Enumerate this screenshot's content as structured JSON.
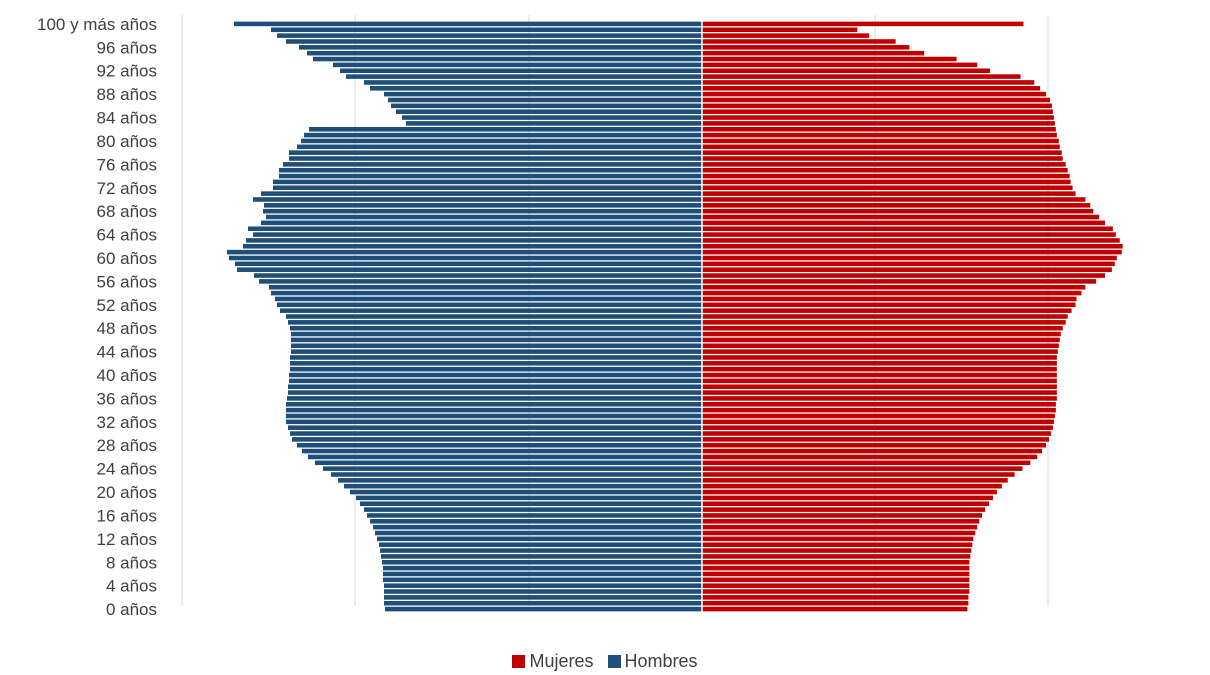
{
  "chart_data": {
    "type": "bar",
    "orientation": "horizontal-pyramid",
    "title": "",
    "xlabel": "",
    "ylabel": "",
    "grid": true,
    "legend_placement": "bottom",
    "category_tick_labels": [
      "0 años",
      "4 años",
      "8 años",
      "12 años",
      "16 años",
      "20 años",
      "24 años",
      "28 años",
      "32 años",
      "36 años",
      "40 años",
      "44 años",
      "48 años",
      "52 años",
      "56 años",
      "60 años",
      "64 años",
      "68 años",
      "72 años",
      "76 años",
      "80 años",
      "84 años",
      "88 años",
      "92 años",
      "96 años",
      "100 y más años"
    ],
    "categories": [
      "0 años",
      "1 años",
      "2 años",
      "3 años",
      "4 años",
      "5 años",
      "6 años",
      "7 años",
      "8 años",
      "9 años",
      "10 años",
      "11 años",
      "12 años",
      "13 años",
      "14 años",
      "15 años",
      "16 años",
      "17 años",
      "18 años",
      "19 años",
      "20 años",
      "21 años",
      "22 años",
      "23 años",
      "24 años",
      "25 años",
      "26 años",
      "27 años",
      "28 años",
      "29 años",
      "30 años",
      "31 años",
      "32 años",
      "33 años",
      "34 años",
      "35 años",
      "36 años",
      "37 años",
      "38 años",
      "39 años",
      "40 años",
      "41 años",
      "42 años",
      "43 años",
      "44 años",
      "45 años",
      "46 años",
      "47 años",
      "48 años",
      "49 años",
      "50 años",
      "51 años",
      "52 años",
      "53 años",
      "54 años",
      "55 años",
      "56 años",
      "57 años",
      "58 años",
      "59 años",
      "60 años",
      "61 años",
      "62 años",
      "63 años",
      "64 años",
      "65 años",
      "66 años",
      "67 años",
      "68 años",
      "69 años",
      "70 años",
      "71 años",
      "72 años",
      "73 años",
      "74 años",
      "75 años",
      "76 años",
      "77 años",
      "78 años",
      "79 años",
      "80 años",
      "81 años",
      "82 años",
      "83 años",
      "84 años",
      "85 años",
      "86 años",
      "87 años",
      "88 años",
      "89 años",
      "90 años",
      "91 años",
      "92 años",
      "93 años",
      "94 años",
      "95 años",
      "96 años",
      "97 años",
      "98 años",
      "99 años",
      "100 y más años"
    ],
    "series": [
      {
        "name": "Mujeres",
        "color": "#C00000",
        "side": "right",
        "values": [
          270,
          271,
          271,
          272,
          272,
          272,
          272,
          272,
          272,
          273,
          274,
          275,
          276,
          278,
          280,
          282,
          285,
          288,
          292,
          296,
          300,
          305,
          311,
          318,
          326,
          334,
          341,
          346,
          350,
          353,
          355,
          357,
          358,
          359,
          360,
          360,
          361,
          361,
          361,
          361,
          361,
          361,
          361,
          361,
          362,
          363,
          364,
          365,
          367,
          370,
          372,
          376,
          380,
          381,
          386,
          390,
          401,
          410,
          417,
          420,
          422,
          427,
          428,
          425,
          421,
          418,
          410,
          404,
          398,
          395,
          390,
          380,
          377,
          375,
          374,
          372,
          370,
          367,
          366,
          364,
          363,
          361,
          360,
          359,
          358,
          357,
          356,
          354,
          350,
          344,
          338,
          324,
          293,
          280,
          259,
          226,
          211,
          197,
          170,
          158,
          327
        ],
        "values_display_scale": "horizontal extent relative to center axis"
      },
      {
        "name": "Hombres",
        "color": "#1F4E79",
        "side": "left",
        "values": [
          317,
          318,
          318,
          318,
          318,
          319,
          319,
          319,
          320,
          321,
          322,
          323,
          325,
          327,
          329,
          332,
          335,
          338,
          342,
          346,
          352,
          358,
          364,
          371,
          379,
          387,
          394,
          400,
          405,
          410,
          412,
          414,
          416,
          416,
          416,
          416,
          415,
          414,
          414,
          413,
          413,
          412,
          412,
          412,
          411,
          411,
          411,
          411,
          412,
          414,
          416,
          422,
          425,
          427,
          431,
          433,
          443,
          448,
          465,
          467,
          473,
          475,
          459,
          456,
          449,
          454,
          441,
          436,
          439,
          438,
          449,
          441,
          429,
          429,
          423,
          423,
          419,
          413,
          413,
          405,
          401,
          398,
          393,
          296,
          300,
          306,
          311,
          314,
          318,
          332,
          338,
          356,
          362,
          369,
          389,
          395,
          403,
          416,
          425,
          431,
          468
        ],
        "values_display_scale": "horizontal extent relative to center axis"
      }
    ]
  },
  "legend": {
    "items": [
      {
        "label": "Mujeres",
        "color": "#C00000"
      },
      {
        "label": "Hombres",
        "color": "#1F4E79"
      }
    ]
  }
}
